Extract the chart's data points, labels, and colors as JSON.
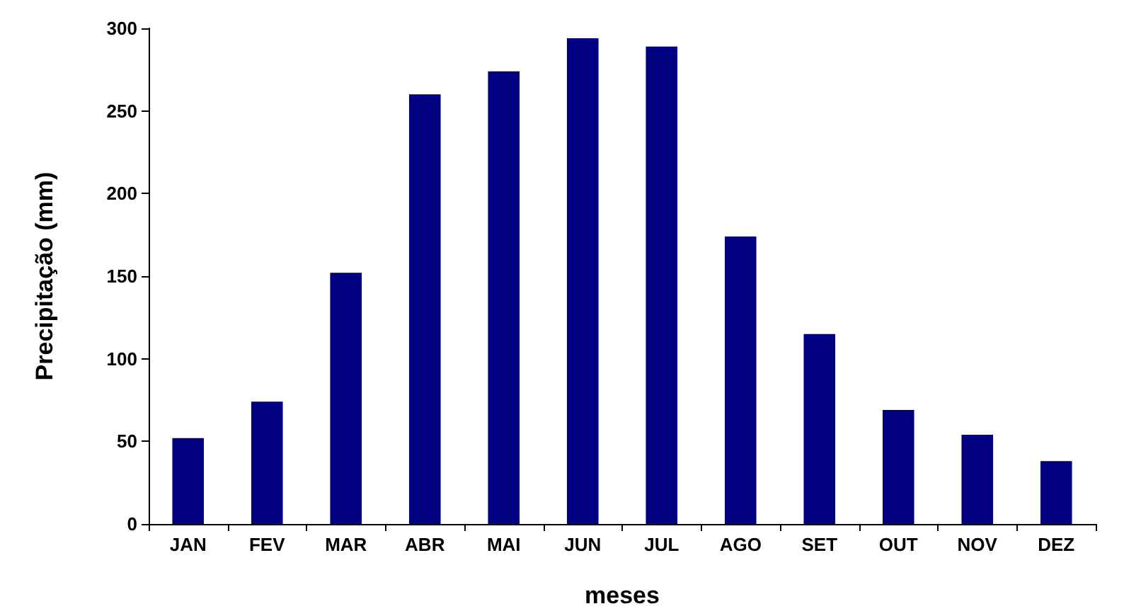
{
  "chart_data": {
    "type": "bar",
    "xlabel": "meses",
    "ylabel": "Precipitação (mm)",
    "categories": [
      "JAN",
      "FEV",
      "MAR",
      "ABR",
      "MAI",
      "JUN",
      "JUL",
      "AGO",
      "SET",
      "OUT",
      "NOV",
      "DEZ"
    ],
    "values": [
      52,
      74,
      152,
      260,
      274,
      294,
      289,
      174,
      115,
      69,
      54,
      38
    ],
    "color": "#000080",
    "ylim": [
      0,
      300
    ],
    "yticks": [
      0,
      50,
      100,
      150,
      200,
      250,
      300
    ]
  }
}
